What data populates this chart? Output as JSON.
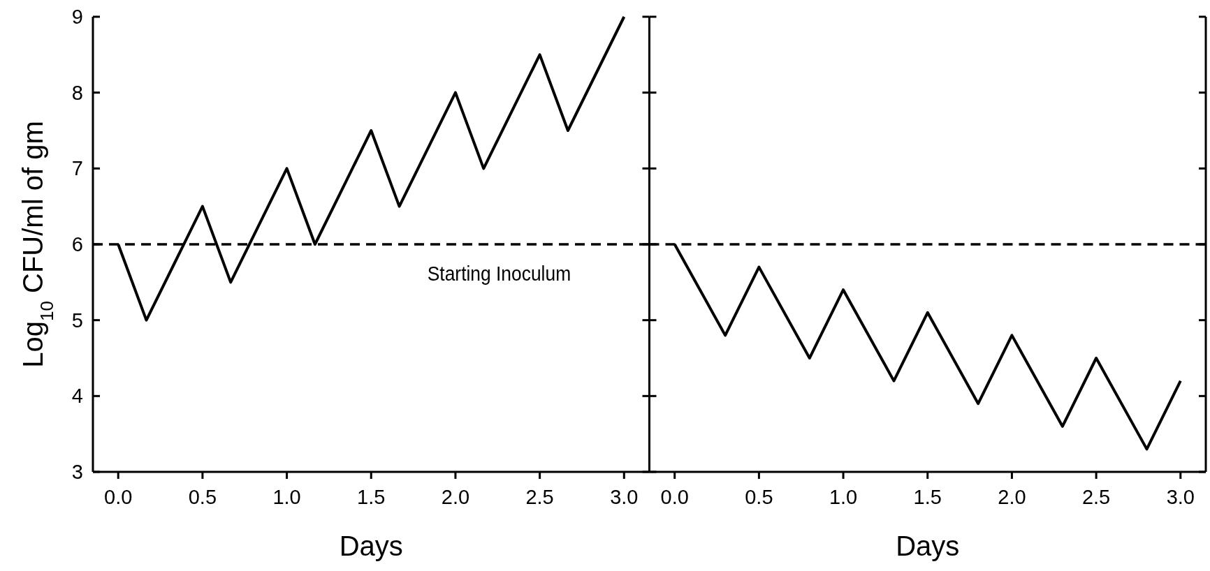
{
  "chart_data": [
    {
      "type": "line",
      "ylabel": "Log$_{10}$ CFU/ml of gm",
      "xlabel": "Days",
      "xlim": [
        -0.15,
        3.15
      ],
      "ylim": [
        3,
        9
      ],
      "xticks": [
        {
          "value": 0,
          "label": "0.0"
        },
        {
          "value": 0.5,
          "label": "0.5"
        },
        {
          "value": 1,
          "label": "1.0"
        },
        {
          "value": 1.5,
          "label": "1.5"
        },
        {
          "value": 2,
          "label": "2.0"
        },
        {
          "value": 2.5,
          "label": "2.5"
        },
        {
          "value": 3,
          "label": "3.0"
        }
      ],
      "yticks": [
        3,
        4,
        5,
        6,
        7,
        8,
        9
      ],
      "series": [
        {
          "color": "#000000",
          "line_style": "solid",
          "x": [
            0,
            0.167,
            0.5,
            0.667,
            1,
            1.167,
            1.5,
            1.667,
            2,
            2.167,
            2.5,
            2.667,
            3
          ],
          "values": [
            6,
            5,
            6.5,
            5.5,
            7,
            6,
            7.5,
            6.5,
            8,
            7,
            8.5,
            7.5,
            9
          ]
        }
      ],
      "ref_lines": [
        {
          "axis": "y",
          "value": 6,
          "label": "Starting Inoculum",
          "color": "#000000",
          "line_style": "dashed"
        }
      ]
    },
    {
      "type": "line",
      "xlabel": "Days",
      "xlim": [
        -0.15,
        3.15
      ],
      "ylim": [
        3,
        9
      ],
      "tick_labels": "x",
      "xticks": [
        {
          "value": 0,
          "label": "0.0"
        },
        {
          "value": 0.5,
          "label": "0.5"
        },
        {
          "value": 1,
          "label": "1.0"
        },
        {
          "value": 1.5,
          "label": "1.5"
        },
        {
          "value": 2,
          "label": "2.0"
        },
        {
          "value": 2.5,
          "label": "2.5"
        },
        {
          "value": 3,
          "label": "3.0"
        }
      ],
      "yticks": [
        3,
        4,
        5,
        6,
        7,
        8,
        9
      ],
      "series": [
        {
          "color": "#000000",
          "line_style": "solid",
          "x": [
            0,
            0.3,
            0.5,
            0.8,
            1,
            1.3,
            1.5,
            1.8,
            2,
            2.3,
            2.5,
            2.8,
            3
          ],
          "values": [
            6,
            4.8,
            5.7,
            4.5,
            5.4,
            4.2,
            5.1,
            3.9,
            4.8,
            3.6,
            4.5,
            3.3,
            4.2
          ]
        }
      ],
      "ref_lines": [
        {
          "axis": "y",
          "value": 6,
          "color": "#000000",
          "line_style": "dashed"
        }
      ]
    }
  ]
}
